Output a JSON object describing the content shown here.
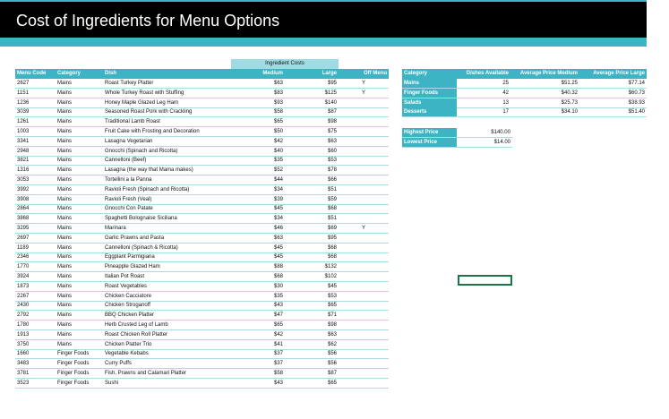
{
  "header": {
    "title": "Cost of Ingredients for Menu Options"
  },
  "table": {
    "group_header": "Ingredient Costs",
    "columns": [
      "Menu Code",
      "Category",
      "Dish",
      "Medium",
      "Large",
      "Off Menu"
    ],
    "rows": [
      [
        "2627",
        "Mains",
        "Roast Turkey Platter",
        "$63",
        "$95",
        "Y"
      ],
      [
        "1151",
        "Mains",
        "Whole Turkey Roast with Stuffing",
        "$83",
        "$125",
        "Y"
      ],
      [
        "1236",
        "Mains",
        "Honey Maple Glazed Leg Ham",
        "$93",
        "$140",
        ""
      ],
      [
        "3039",
        "Mains",
        "Seasoned Roast Pork with Crackling",
        "$58",
        "$87",
        ""
      ],
      [
        "1261",
        "Mains",
        "Traditional Lamb Roast",
        "$65",
        "$98",
        ""
      ],
      [
        "1003",
        "Mains",
        "Fruit Cake with Frosting and Decoration",
        "$50",
        "$75",
        ""
      ],
      [
        "3341",
        "Mains",
        "Lasagna Vegetarian",
        "$42",
        "$63",
        ""
      ],
      [
        "2948",
        "Mains",
        "Gnocchi (Spinach and Ricotta)",
        "$40",
        "$60",
        ""
      ],
      [
        "3821",
        "Mains",
        "Cannelloni (Beef)",
        "$35",
        "$53",
        ""
      ],
      [
        "1316",
        "Mains",
        "Lasagna (the way that Mama makes)",
        "$52",
        "$78",
        ""
      ],
      [
        "3053",
        "Mains",
        "Tortellini a la Panna",
        "$44",
        "$66",
        ""
      ],
      [
        "3992",
        "Mains",
        "Ravioli Fresh (Spinach and Ricotta)",
        "$34",
        "$51",
        ""
      ],
      [
        "3908",
        "Mains",
        "Ravioli Fresh (Veal)",
        "$39",
        "$59",
        ""
      ],
      [
        "2864",
        "Mains",
        "Gnocchi Con Patate",
        "$45",
        "$68",
        ""
      ],
      [
        "3868",
        "Mains",
        "Spaghetti Bolognaise Siciliana",
        "$34",
        "$51",
        ""
      ],
      [
        "3295",
        "Mains",
        "Marinara",
        "$46",
        "$69",
        "Y"
      ],
      [
        "2697",
        "Mains",
        "Garlic Prawns and Pasta",
        "$63",
        "$95",
        ""
      ],
      [
        "1189",
        "Mains",
        "Cannelloni (Spinach & Ricotta)",
        "$45",
        "$68",
        ""
      ],
      [
        "2346",
        "Mains",
        "Eggplant Parmigiana",
        "$45",
        "$68",
        ""
      ],
      [
        "1770",
        "Mains",
        "Pineapple Glazed Ham",
        "$88",
        "$132",
        ""
      ],
      [
        "3924",
        "Mains",
        "Italian Pot Roast",
        "$68",
        "$102",
        ""
      ],
      [
        "1873",
        "Mains",
        "Roast Vegetables",
        "$30",
        "$45",
        ""
      ],
      [
        "2267",
        "Mains",
        "Chicken Cacciatore",
        "$35",
        "$53",
        ""
      ],
      [
        "2430",
        "Mains",
        "Chicken Stroganoff",
        "$43",
        "$65",
        ""
      ],
      [
        "2792",
        "Mains",
        "BBQ Chicken Platter",
        "$47",
        "$71",
        ""
      ],
      [
        "1780",
        "Mains",
        "Herb Crusted Leg of Lamb",
        "$65",
        "$98",
        ""
      ],
      [
        "1913",
        "Mains",
        "Roast Chicken Roll Platter",
        "$42",
        "$63",
        ""
      ],
      [
        "3750",
        "Mains",
        "Chicken Platter Trio",
        "$41",
        "$62",
        ""
      ],
      [
        "1660",
        "Finger Foods",
        "Vegetable Kebabs",
        "$37",
        "$56",
        ""
      ],
      [
        "3483",
        "Finger Foods",
        "Curry Puffs",
        "$37",
        "$56",
        ""
      ],
      [
        "3781",
        "Finger Foods",
        "Fish, Prawns and Calamari Platter",
        "$58",
        "$87",
        ""
      ],
      [
        "3523",
        "Finger Foods",
        "Sushi",
        "$43",
        "$65",
        ""
      ]
    ]
  },
  "summary": {
    "columns": [
      "Category",
      "Dishes Available",
      "Average Price Medium",
      "Average Price Large"
    ],
    "rows": [
      [
        "Mains",
        "25",
        "$51.25",
        "$77.14"
      ],
      [
        "Finger Foods",
        "42",
        "$40.32",
        "$60.73"
      ],
      [
        "Salads",
        "13",
        "$25.73",
        "$38.93"
      ],
      [
        "Desserts",
        "17",
        "$34.10",
        "$51.40"
      ]
    ]
  },
  "extremes": {
    "rows": [
      [
        "Highest Price",
        "$140.00"
      ],
      [
        "Lowest Price",
        "$14.00"
      ]
    ]
  }
}
